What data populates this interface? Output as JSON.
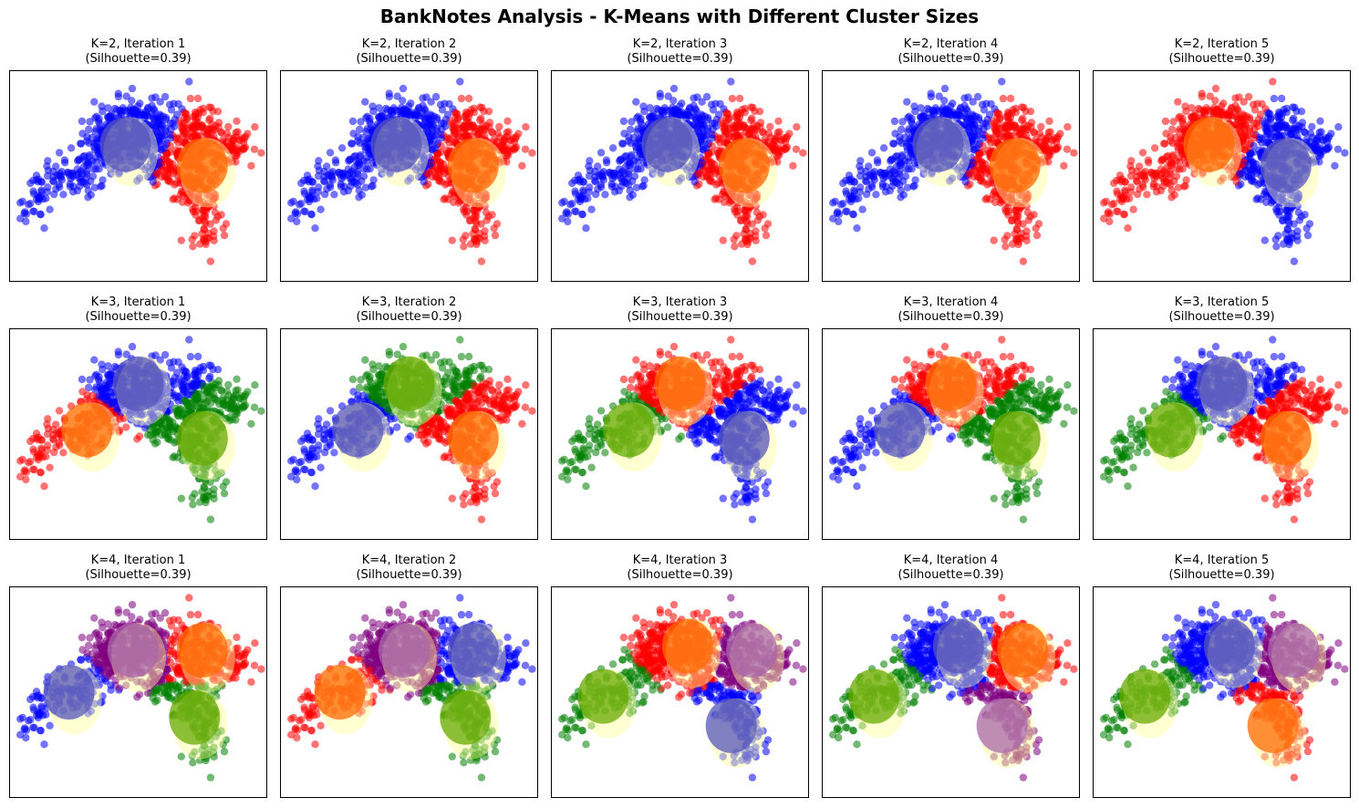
{
  "suptitle": "BankNotes Analysis - K-Means with Different Cluster Sizes",
  "colors": {
    "red": "#ff0000",
    "blue": "#0000ff",
    "green": "#008000",
    "purple": "#800080",
    "centroid_ellipse": "#ffff99"
  },
  "chart_data": [
    {
      "type": "scatter",
      "k": 2,
      "iteration": 1,
      "title": "K=2, Iteration 1",
      "subtitle": "(Silhouette=0.39)",
      "assignment": "k2a",
      "palette": [
        "blue",
        "red"
      ]
    },
    {
      "type": "scatter",
      "k": 2,
      "iteration": 2,
      "title": "K=2, Iteration 2",
      "subtitle": "(Silhouette=0.39)",
      "assignment": "k2a",
      "palette": [
        "blue",
        "red"
      ]
    },
    {
      "type": "scatter",
      "k": 2,
      "iteration": 3,
      "title": "K=2, Iteration 3",
      "subtitle": "(Silhouette=0.39)",
      "assignment": "k2a",
      "palette": [
        "blue",
        "red"
      ]
    },
    {
      "type": "scatter",
      "k": 2,
      "iteration": 4,
      "title": "K=2, Iteration 4",
      "subtitle": "(Silhouette=0.39)",
      "assignment": "k2a",
      "palette": [
        "blue",
        "red"
      ]
    },
    {
      "type": "scatter",
      "k": 2,
      "iteration": 5,
      "title": "K=2, Iteration 5",
      "subtitle": "(Silhouette=0.39)",
      "assignment": "k2a",
      "palette": [
        "red",
        "blue"
      ]
    },
    {
      "type": "scatter",
      "k": 3,
      "iteration": 1,
      "title": "K=3, Iteration 1",
      "subtitle": "(Silhouette=0.39)",
      "assignment": "k3a",
      "palette": [
        "red",
        "blue",
        "green"
      ]
    },
    {
      "type": "scatter",
      "k": 3,
      "iteration": 2,
      "title": "K=3, Iteration 2",
      "subtitle": "(Silhouette=0.39)",
      "assignment": "k3a",
      "palette": [
        "blue",
        "green",
        "red"
      ]
    },
    {
      "type": "scatter",
      "k": 3,
      "iteration": 3,
      "title": "K=3, Iteration 3",
      "subtitle": "(Silhouette=0.39)",
      "assignment": "k3a",
      "palette": [
        "green",
        "red",
        "blue"
      ]
    },
    {
      "type": "scatter",
      "k": 3,
      "iteration": 4,
      "title": "K=3, Iteration 4",
      "subtitle": "(Silhouette=0.39)",
      "assignment": "k3a",
      "palette": [
        "blue",
        "red",
        "green"
      ]
    },
    {
      "type": "scatter",
      "k": 3,
      "iteration": 5,
      "title": "K=3, Iteration 5",
      "subtitle": "(Silhouette=0.39)",
      "assignment": "k3a",
      "palette": [
        "green",
        "blue",
        "red"
      ]
    },
    {
      "type": "scatter",
      "k": 4,
      "iteration": 1,
      "title": "K=4, Iteration 1",
      "subtitle": "(Silhouette=0.39)",
      "assignment": "k4a",
      "palette": [
        "blue",
        "purple",
        "red",
        "green"
      ]
    },
    {
      "type": "scatter",
      "k": 4,
      "iteration": 2,
      "title": "K=4, Iteration 2",
      "subtitle": "(Silhouette=0.39)",
      "assignment": "k4a",
      "palette": [
        "red",
        "purple",
        "blue",
        "green"
      ]
    },
    {
      "type": "scatter",
      "k": 4,
      "iteration": 3,
      "title": "K=4, Iteration 3",
      "subtitle": "(Silhouette=0.39)",
      "assignment": "k4b",
      "palette": [
        "green",
        "red",
        "purple",
        "blue"
      ]
    },
    {
      "type": "scatter",
      "k": 4,
      "iteration": 4,
      "title": "K=4, Iteration 4",
      "subtitle": "(Silhouette=0.39)",
      "assignment": "k4b",
      "palette": [
        "green",
        "blue",
        "red",
        "purple"
      ]
    },
    {
      "type": "scatter",
      "k": 4,
      "iteration": 5,
      "title": "K=4, Iteration 5",
      "subtitle": "(Silhouette=0.39)",
      "assignment": "k4b",
      "palette": [
        "green",
        "blue",
        "purple",
        "red"
      ]
    }
  ]
}
